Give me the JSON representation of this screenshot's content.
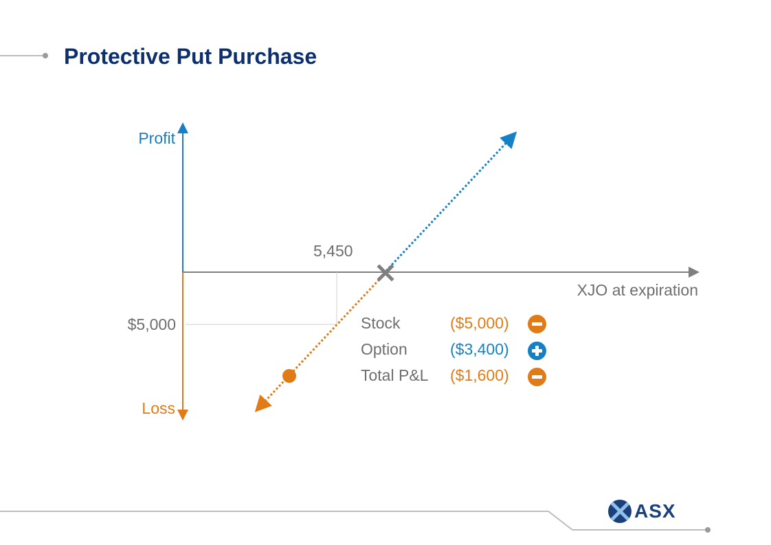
{
  "header": {
    "title": "Protective Put Purchase"
  },
  "diagram": {
    "y_axis_top_label": "Profit",
    "y_axis_bottom_label": "Loss",
    "x_axis_label": "XJO at expiration",
    "strike_label": "5,450",
    "loss_level_label": "$5,000",
    "colors": {
      "profit": "#1580c6",
      "loss": "#e07b17",
      "axis": "#7f7f7f"
    }
  },
  "breakdown": {
    "rows": [
      {
        "label": "Stock",
        "value": "($5,000)",
        "sign": "minus",
        "color": "#e07b17"
      },
      {
        "label": "Option",
        "value": "($3,400)",
        "sign": "plus",
        "color": "#1580c6"
      },
      {
        "label": "Total P&L",
        "value": "($1,600)",
        "sign": "minus",
        "color": "#e07b17"
      }
    ]
  },
  "footer": {
    "logo_text": "ASX"
  }
}
